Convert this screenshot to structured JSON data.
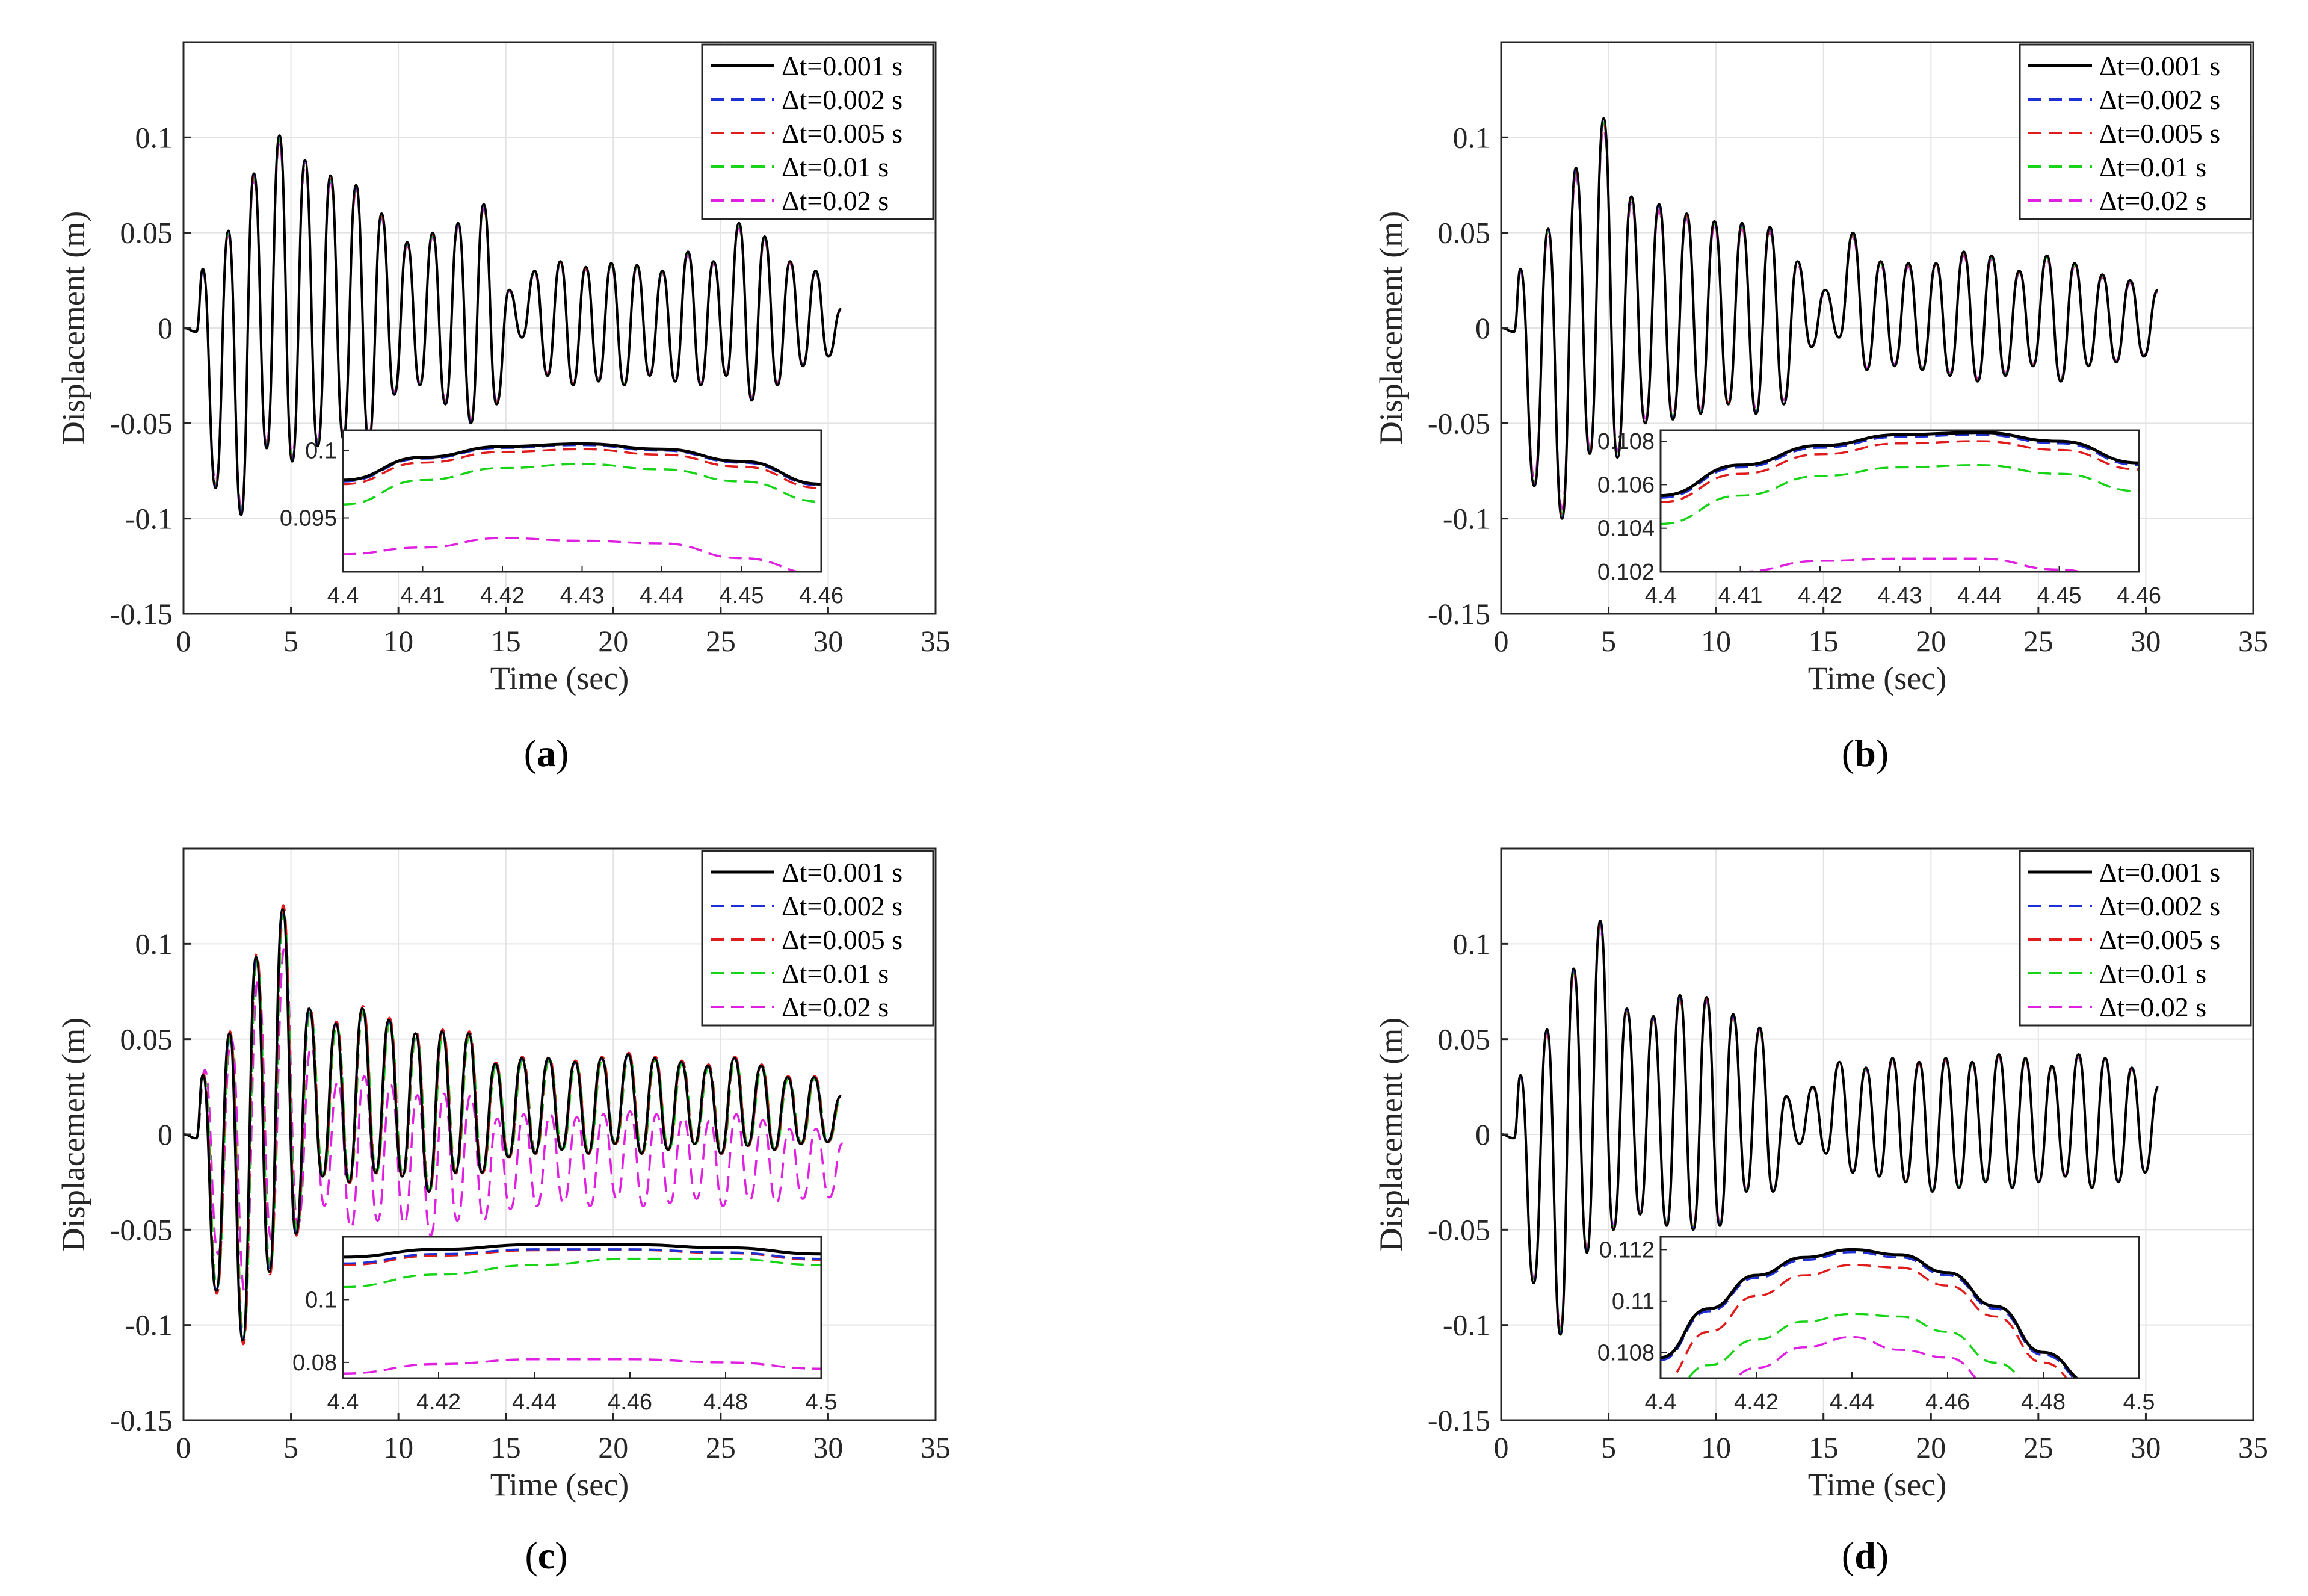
{
  "figure": {
    "panels": [
      "a",
      "b",
      "c",
      "d"
    ]
  },
  "chart_data": [
    {
      "id": "a",
      "type": "line",
      "label": "a",
      "xlabel": "Time (sec)",
      "ylabel": "Displacement (m)",
      "xlim": [
        0,
        35
      ],
      "ylim": [
        -0.15,
        0.15
      ],
      "xticks": [
        "0",
        "5",
        "10",
        "15",
        "20",
        "25",
        "30",
        "35"
      ],
      "yticks": [
        "-0.15",
        "-0.1",
        "-0.05",
        "0",
        "0.05",
        "0.1"
      ],
      "grid": true,
      "legend_position": "top-right",
      "series": [
        {
          "name": "Δt=0.001 s",
          "color": "#000000",
          "dash": "solid",
          "peaks": [
            0.031,
            -0.084,
            0.051,
            -0.098,
            0.081,
            -0.063,
            0.101,
            -0.07,
            0.088,
            -0.062,
            0.08,
            -0.058,
            0.075,
            -0.06,
            0.06,
            -0.035,
            0.045,
            -0.03,
            0.05,
            -0.04,
            0.055,
            -0.05,
            0.065,
            -0.04,
            0.02,
            -0.005,
            0.03,
            -0.025,
            0.035,
            -0.03,
            0.032,
            -0.028,
            0.034,
            -0.03,
            0.033,
            -0.025,
            0.03,
            -0.028,
            0.04,
            -0.03,
            0.035,
            -0.025,
            0.055,
            -0.038,
            0.048,
            -0.03,
            0.035,
            -0.02,
            0.03,
            -0.015,
            0.01
          ]
        },
        {
          "name": "Δt=0.002 s",
          "color": "#1f2fd6",
          "dash": "dashed",
          "scale": 1.0,
          "phase": 0.0
        },
        {
          "name": "Δt=0.005 s",
          "color": "#e01b1b",
          "dash": "dashed",
          "scale": 0.99,
          "phase": 0.0
        },
        {
          "name": "Δt=0.01 s",
          "color": "#17d417",
          "dash": "dashed",
          "scale": 0.98,
          "phase": 0.0
        },
        {
          "name": "Δt=0.02 s",
          "color": "#e020e0",
          "dash": "dashed",
          "scale": 0.96,
          "phase": 0.0
        }
      ],
      "inset": {
        "xlim": [
          4.4,
          4.46
        ],
        "ylim": [
          0.091,
          0.1015
        ],
        "xticks": [
          "4.4",
          "4.41",
          "4.42",
          "4.43",
          "4.44",
          "4.45",
          "4.46"
        ],
        "yticks": [
          "0.095",
          "0.1"
        ],
        "curves": [
          {
            "series": "Δt=0.001 s",
            "x": [
              4.4,
              4.41,
              4.42,
              4.43,
              4.44,
              4.45,
              4.46
            ],
            "y": [
              0.0978,
              0.0995,
              0.1003,
              0.1005,
              0.1001,
              0.0992,
              0.0975
            ]
          },
          {
            "series": "Δt=0.002 s",
            "x": [
              4.4,
              4.41,
              4.42,
              4.43,
              4.44,
              4.45,
              4.46
            ],
            "y": [
              0.0977,
              0.0994,
              0.1002,
              0.1004,
              0.1,
              0.0991,
              0.0974
            ]
          },
          {
            "series": "Δt=0.005 s",
            "x": [
              4.4,
              4.41,
              4.42,
              4.43,
              4.44,
              4.45,
              4.46
            ],
            "y": [
              0.0975,
              0.0991,
              0.0999,
              0.1001,
              0.0997,
              0.0988,
              0.0972
            ]
          },
          {
            "series": "Δt=0.01 s",
            "x": [
              4.4,
              4.41,
              4.42,
              4.43,
              4.44,
              4.45,
              4.46
            ],
            "y": [
              0.096,
              0.0978,
              0.0987,
              0.099,
              0.0986,
              0.0977,
              0.0962
            ]
          },
          {
            "series": "Δt=0.02 s",
            "x": [
              4.4,
              4.41,
              4.42,
              4.43,
              4.44,
              4.45,
              4.46
            ],
            "y": [
              0.0923,
              0.0928,
              0.0935,
              0.0933,
              0.0931,
              0.092,
              0.0908
            ]
          }
        ]
      }
    },
    {
      "id": "b",
      "type": "line",
      "label": "b",
      "xlabel": "Time (sec)",
      "ylabel": "Displacement (m)",
      "xlim": [
        0,
        35
      ],
      "ylim": [
        -0.15,
        0.15
      ],
      "xticks": [
        "0",
        "5",
        "10",
        "15",
        "20",
        "25",
        "30",
        "35"
      ],
      "yticks": [
        "-0.15",
        "-0.1",
        "-0.05",
        "0",
        "0.05",
        "0.1"
      ],
      "grid": true,
      "legend_position": "top-right",
      "series": [
        {
          "name": "Δt=0.001 s",
          "color": "#000000",
          "dash": "solid",
          "peaks": [
            0.031,
            -0.083,
            0.052,
            -0.1,
            0.084,
            -0.066,
            0.11,
            -0.068,
            0.069,
            -0.05,
            0.065,
            -0.048,
            0.06,
            -0.045,
            0.056,
            -0.04,
            0.055,
            -0.045,
            0.053,
            -0.04,
            0.035,
            -0.01,
            0.02,
            -0.005,
            0.05,
            -0.022,
            0.035,
            -0.02,
            0.034,
            -0.022,
            0.034,
            -0.025,
            0.04,
            -0.028,
            0.038,
            -0.025,
            0.03,
            -0.02,
            0.038,
            -0.028,
            0.034,
            -0.02,
            0.028,
            -0.018,
            0.025,
            -0.015,
            0.02
          ]
        },
        {
          "name": "Δt=0.002 s",
          "color": "#1f2fd6",
          "dash": "dashed",
          "scale": 1.0,
          "phase": 0.0
        },
        {
          "name": "Δt=0.005 s",
          "color": "#e01b1b",
          "dash": "dashed",
          "scale": 0.99,
          "phase": 0.0
        },
        {
          "name": "Δt=0.01 s",
          "color": "#17d417",
          "dash": "dashed",
          "scale": 0.98,
          "phase": 0.0
        },
        {
          "name": "Δt=0.02 s",
          "color": "#e020e0",
          "dash": "dashed",
          "scale": 0.95,
          "phase": 0.0
        }
      ],
      "inset": {
        "xlim": [
          4.4,
          4.46
        ],
        "ylim": [
          0.102,
          0.1085
        ],
        "xticks": [
          "4.4",
          "4.41",
          "4.42",
          "4.43",
          "4.44",
          "4.45",
          "4.46"
        ],
        "yticks": [
          "0.102",
          "0.104",
          "0.106",
          "0.108"
        ],
        "curves": [
          {
            "series": "Δt=0.001 s",
            "x": [
              4.4,
              4.41,
              4.42,
              4.43,
              4.44,
              4.45,
              4.46
            ],
            "y": [
              0.1055,
              0.1069,
              0.1078,
              0.1083,
              0.1084,
              0.108,
              0.107
            ]
          },
          {
            "series": "Δt=0.002 s",
            "x": [
              4.4,
              4.41,
              4.42,
              4.43,
              4.44,
              4.45,
              4.46
            ],
            "y": [
              0.1054,
              0.1068,
              0.1077,
              0.1082,
              0.1083,
              0.1079,
              0.1069
            ]
          },
          {
            "series": "Δt=0.005 s",
            "x": [
              4.4,
              4.41,
              4.42,
              4.43,
              4.44,
              4.45,
              4.46
            ],
            "y": [
              0.1052,
              0.1065,
              0.1074,
              0.1079,
              0.108,
              0.1076,
              0.1067
            ]
          },
          {
            "series": "Δt=0.01 s",
            "x": [
              4.4,
              4.41,
              4.42,
              4.43,
              4.44,
              4.45,
              4.46
            ],
            "y": [
              0.1042,
              0.1055,
              0.1064,
              0.1068,
              0.1069,
              0.1065,
              0.1057
            ]
          },
          {
            "series": "Δt=0.02 s",
            "x": [
              4.4,
              4.41,
              4.42,
              4.43,
              4.44,
              4.45,
              4.46
            ],
            "y": [
              0.1012,
              0.102,
              0.1025,
              0.1026,
              0.1026,
              0.1021,
              0.1012
            ]
          }
        ]
      }
    },
    {
      "id": "c",
      "type": "line",
      "label": "c",
      "xlabel": "Time (sec)",
      "ylabel": "Displacement (m)",
      "xlim": [
        0,
        35
      ],
      "ylim": [
        -0.15,
        0.15
      ],
      "xticks": [
        "0",
        "5",
        "10",
        "15",
        "20",
        "25",
        "30",
        "35"
      ],
      "yticks": [
        "-0.15",
        "-0.1",
        "-0.05",
        "0",
        "0.05",
        "0.1"
      ],
      "grid": true,
      "legend_position": "top-right",
      "series": [
        {
          "name": "Δt=0.001 s",
          "color": "#000000",
          "dash": "solid",
          "peaks": [
            0.031,
            -0.082,
            0.053,
            -0.108,
            0.093,
            -0.072,
            0.118,
            -0.052,
            0.066,
            -0.022,
            0.058,
            -0.025,
            0.066,
            -0.02,
            0.06,
            -0.022,
            0.053,
            -0.03,
            0.054,
            -0.02,
            0.053,
            -0.02,
            0.037,
            -0.012,
            0.04,
            -0.01,
            0.04,
            -0.008,
            0.038,
            -0.01,
            0.04,
            -0.005,
            0.042,
            -0.01,
            0.04,
            -0.008,
            0.038,
            -0.005,
            0.036,
            -0.01,
            0.04,
            -0.006,
            0.036,
            -0.008,
            0.03,
            -0.005,
            0.03,
            -0.004,
            0.02
          ]
        },
        {
          "name": "Δt=0.002 s",
          "color": "#1f2fd6",
          "dash": "dashed",
          "scale": 1.0,
          "phase": 0.02
        },
        {
          "name": "Δt=0.005 s",
          "color": "#e01b1b",
          "dash": "dashed",
          "scale": 1.02,
          "phase": 0.05
        },
        {
          "name": "Δt=0.01 s",
          "color": "#17d417",
          "dash": "dashed",
          "scale": 0.98,
          "phase": 0.08
        },
        {
          "name": "Δt=0.02 s",
          "color": "#e020e0",
          "dash": "dashed",
          "scale": 0.9,
          "phase": 0.15,
          "drift": -0.03
        }
      ],
      "inset": {
        "xlim": [
          4.4,
          4.5
        ],
        "ylim": [
          0.075,
          0.12
        ],
        "xticks": [
          "4.4",
          "4.42",
          "4.44",
          "4.46",
          "4.48",
          "4.5"
        ],
        "yticks": [
          "0.08",
          "0.1"
        ],
        "curves": [
          {
            "series": "Δt=0.001 s",
            "x": [
              4.4,
              4.42,
              4.44,
              4.46,
              4.48,
              4.5
            ],
            "y": [
              0.1135,
              0.116,
              0.1175,
              0.1175,
              0.1165,
              0.1145
            ]
          },
          {
            "series": "Δt=0.002 s",
            "x": [
              4.4,
              4.42,
              4.44,
              4.46,
              4.48,
              4.5
            ],
            "y": [
              0.1115,
              0.1145,
              0.116,
              0.116,
              0.115,
              0.113
            ]
          },
          {
            "series": "Δt=0.005 s",
            "x": [
              4.4,
              4.42,
              4.44,
              4.46,
              4.48,
              4.5
            ],
            "y": [
              0.111,
              0.114,
              0.1157,
              0.1158,
              0.1148,
              0.1127
            ]
          },
          {
            "series": "Δt=0.01 s",
            "x": [
              4.4,
              4.42,
              4.44,
              4.46,
              4.48,
              4.5
            ],
            "y": [
              0.104,
              0.108,
              0.111,
              0.113,
              0.113,
              0.111
            ]
          },
          {
            "series": "Δt=0.02 s",
            "x": [
              4.4,
              4.42,
              4.44,
              4.46,
              4.48,
              4.5
            ],
            "y": [
              0.0765,
              0.0795,
              0.081,
              0.081,
              0.08,
              0.078
            ]
          }
        ]
      }
    },
    {
      "id": "d",
      "type": "line",
      "label": "d",
      "xlabel": "Time (sec)",
      "ylabel": "Displacement (m)",
      "xlim": [
        0,
        35
      ],
      "ylim": [
        -0.15,
        0.15
      ],
      "xticks": [
        "0",
        "5",
        "10",
        "15",
        "20",
        "25",
        "30",
        "35"
      ],
      "yticks": [
        "-0.15",
        "-0.1",
        "-0.05",
        "0",
        "0.05",
        "0.1"
      ],
      "grid": true,
      "legend_position": "top-right",
      "series": [
        {
          "name": "Δt=0.001 s",
          "color": "#000000",
          "dash": "solid",
          "peaks": [
            0.031,
            -0.078,
            0.055,
            -0.105,
            0.087,
            -0.062,
            0.112,
            -0.05,
            0.066,
            -0.042,
            0.062,
            -0.048,
            0.073,
            -0.05,
            0.072,
            -0.048,
            0.063,
            -0.03,
            0.056,
            -0.03,
            0.02,
            -0.005,
            0.025,
            -0.01,
            0.038,
            -0.02,
            0.035,
            -0.022,
            0.04,
            -0.025,
            0.038,
            -0.03,
            0.04,
            -0.028,
            0.038,
            -0.025,
            0.042,
            -0.028,
            0.04,
            -0.025,
            0.036,
            -0.022,
            0.042,
            -0.028,
            0.04,
            -0.025,
            0.035,
            -0.02,
            0.025
          ]
        },
        {
          "name": "Δt=0.002 s",
          "color": "#1f2fd6",
          "dash": "dashed",
          "scale": 1.0,
          "phase": 0.0
        },
        {
          "name": "Δt=0.005 s",
          "color": "#e01b1b",
          "dash": "dashed",
          "scale": 0.99,
          "phase": 0.0
        },
        {
          "name": "Δt=0.01 s",
          "color": "#17d417",
          "dash": "dashed",
          "scale": 0.98,
          "phase": 0.0
        },
        {
          "name": "Δt=0.02 s",
          "color": "#e020e0",
          "dash": "dashed",
          "scale": 0.97,
          "phase": 0.0
        }
      ],
      "inset": {
        "xlim": [
          4.4,
          4.5
        ],
        "ylim": [
          0.107,
          0.1125
        ],
        "xticks": [
          "4.4",
          "4.42",
          "4.44",
          "4.46",
          "4.48",
          "4.5"
        ],
        "yticks": [
          "0.108",
          "0.11",
          "0.112"
        ],
        "curves": [
          {
            "series": "Δt=0.001 s",
            "x": [
              4.4,
              4.41,
              4.42,
              4.43,
              4.44,
              4.45,
              4.46,
              4.47,
              4.48,
              4.49
            ],
            "y": [
              0.1078,
              0.1097,
              0.111,
              0.1117,
              0.112,
              0.1118,
              0.1111,
              0.1098,
              0.108,
              0.1068
            ]
          },
          {
            "series": "Δt=0.002 s",
            "x": [
              4.4,
              4.41,
              4.42,
              4.43,
              4.44,
              4.45,
              4.46,
              4.47,
              4.48,
              4.49
            ],
            "y": [
              0.1077,
              0.1096,
              0.1109,
              0.1116,
              0.1119,
              0.1117,
              0.111,
              0.1097,
              0.1079,
              0.1067
            ]
          },
          {
            "series": "Δt=0.005 s",
            "x": [
              4.4,
              4.41,
              4.42,
              4.43,
              4.44,
              4.45,
              4.46,
              4.47,
              4.48,
              4.49
            ],
            "y": [
              0.1068,
              0.1088,
              0.1102,
              0.111,
              0.1114,
              0.1113,
              0.1106,
              0.1094,
              0.1076,
              0.1063
            ]
          },
          {
            "series": "Δt=0.01 s",
            "x": [
              4.4,
              4.41,
              4.42,
              4.43,
              4.44,
              4.45,
              4.46,
              4.47,
              4.48,
              4.49
            ],
            "y": [
              0.106,
              0.1075,
              0.1085,
              0.1092,
              0.1095,
              0.1094,
              0.1088,
              0.1076,
              0.1064,
              0.1055
            ]
          },
          {
            "series": "Δt=0.02 s",
            "x": [
              4.41,
              4.42,
              4.43,
              4.44,
              4.45,
              4.46,
              4.47
            ],
            "y": [
              0.1062,
              0.1074,
              0.1082,
              0.1086,
              0.1081,
              0.1078,
              0.1066
            ]
          }
        ]
      }
    }
  ]
}
